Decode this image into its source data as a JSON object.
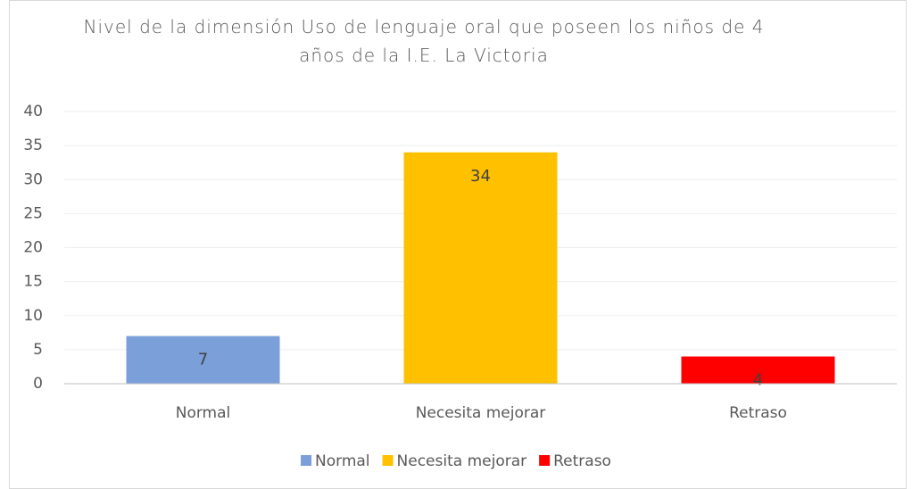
{
  "chart_data": {
    "type": "bar",
    "title": "Nivel de la dimensión Uso de lenguaje oral que poseen los niños de 4 años de la I.E. La Victoria",
    "categories": [
      "Normal",
      "Necesita mejorar",
      "Retraso"
    ],
    "values": [
      7,
      34,
      4
    ],
    "colors": [
      "#7b9fd9",
      "#ffc000",
      "#ff0000"
    ],
    "ylim": [
      0,
      40
    ],
    "yticks": [
      0,
      5,
      10,
      15,
      20,
      25,
      30,
      35,
      40
    ],
    "grid": true,
    "legend": "bottom"
  }
}
